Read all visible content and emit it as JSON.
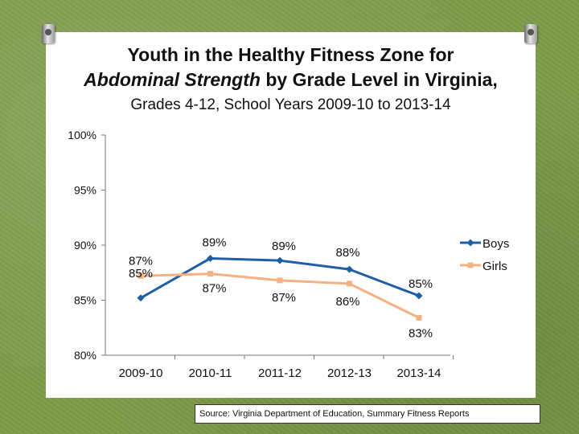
{
  "title_line1": "Youth in the Healthy Fitness Zone for",
  "title_line2_italic": "Abdominal Strength",
  "title_line2_rest": " by Grade Level in Virginia,",
  "subtitle": "Grades 4-12, School Years 2009-10 to 2013-14",
  "source": "Source: Virginia Department of Education, Summary Fitness Reports",
  "colors": {
    "boys": "#1f5fa8",
    "girls": "#f5b083"
  },
  "chart_data": {
    "type": "line",
    "categories": [
      "2009-10",
      "2010-11",
      "2011-12",
      "2012-13",
      "2013-14"
    ],
    "series": [
      {
        "name": "Boys",
        "values": [
          85.2,
          88.8,
          88.6,
          87.8,
          85.4
        ],
        "labels": [
          "85%",
          "89%",
          "89%",
          "88%",
          "85%"
        ],
        "marker": "diamond"
      },
      {
        "name": "Girls",
        "values": [
          87.2,
          87.4,
          86.8,
          86.5,
          83.4
        ],
        "labels": [
          "87%",
          "87%",
          "87%",
          "86%",
          "83%"
        ],
        "marker": "square"
      }
    ],
    "ylim": [
      80,
      100
    ],
    "yticks": [
      80,
      85,
      90,
      95,
      100
    ],
    "ytick_labels": [
      "80%",
      "85%",
      "90%",
      "95%",
      "100%"
    ],
    "title": "Youth in the Healthy Fitness Zone for Abdominal Strength by Grade Level in Virginia,",
    "subtitle": "Grades 4-12, School Years 2009-10 to 2013-14",
    "xlabel": "",
    "ylabel": "",
    "legend": "right"
  }
}
